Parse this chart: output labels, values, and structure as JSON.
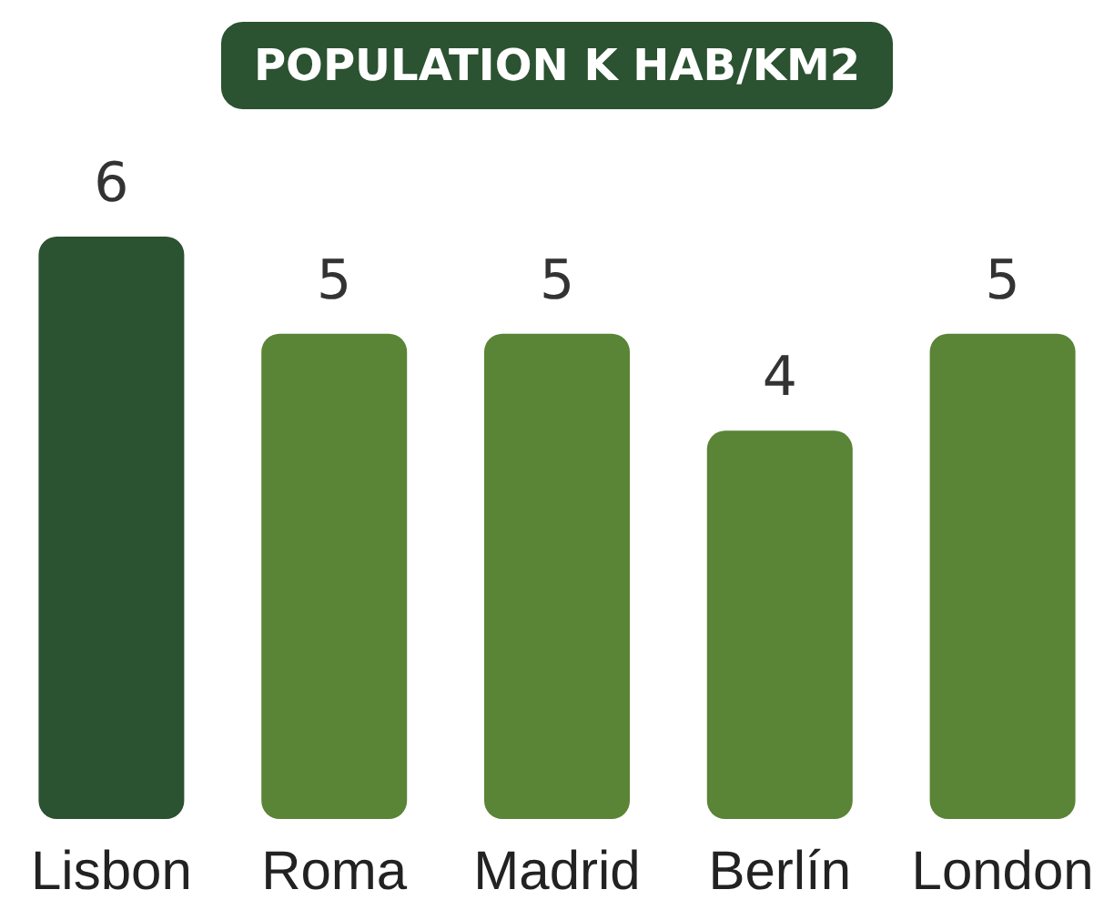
{
  "chart_data": {
    "type": "bar",
    "title": "POPULATION K HAB/KM2",
    "categories": [
      "Lisbon",
      "Roma",
      "Madrid",
      "Berlín",
      "London"
    ],
    "values": [
      6,
      5,
      5,
      4,
      5
    ],
    "colors": [
      "#2b5231",
      "#5a8436",
      "#5a8436",
      "#5a8436",
      "#5a8436"
    ],
    "data_labels": true
  }
}
